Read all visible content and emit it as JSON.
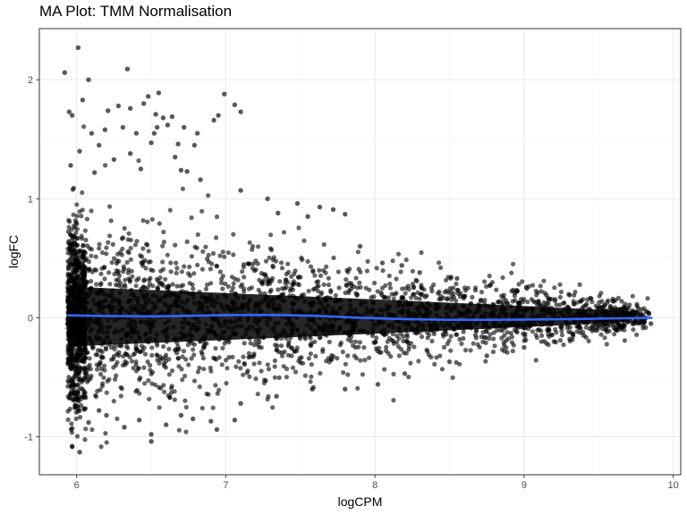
{
  "chart_data": {
    "type": "scatter",
    "title": "MA Plot: TMM Normalisation",
    "xlabel": "logCPM",
    "ylabel": "logFC",
    "xlim": [
      5.75,
      10.05
    ],
    "ylim": [
      -1.32,
      2.43
    ],
    "x_ticks": [
      "6",
      "7",
      "8",
      "9",
      "10"
    ],
    "x_tick_values": [
      6,
      7,
      8,
      9,
      10
    ],
    "y_ticks": [
      "-1",
      "0",
      "1",
      "2"
    ],
    "y_tick_values": [
      -1,
      0,
      1,
      2
    ],
    "grid": true,
    "theme": "bw",
    "point_color": "#000000",
    "point_alpha": 0.6,
    "line_color": "#3366FF",
    "point_density": "very dense cloud of several thousand genes; spread of logFC narrows as logCPM increases",
    "points": [
      [
        5.92,
        2.06
      ],
      [
        6.01,
        2.27
      ],
      [
        6.08,
        2.0
      ],
      [
        6.34,
        2.09
      ],
      [
        6.48,
        1.86
      ],
      [
        6.55,
        1.89
      ],
      [
        6.99,
        1.88
      ],
      [
        7.06,
        1.79
      ],
      [
        5.95,
        1.73
      ],
      [
        5.97,
        1.7
      ],
      [
        6.04,
        1.83
      ],
      [
        6.21,
        1.74
      ],
      [
        6.28,
        1.78
      ],
      [
        6.36,
        1.76
      ],
      [
        6.45,
        1.8
      ],
      [
        6.53,
        1.71
      ],
      [
        6.58,
        1.68
      ],
      [
        6.64,
        1.69
      ],
      [
        7.1,
        1.73
      ],
      [
        6.95,
        1.7
      ],
      [
        6.92,
        1.66
      ],
      [
        6.72,
        1.6
      ],
      [
        6.81,
        1.55
      ],
      [
        6.54,
        1.6
      ],
      [
        6.52,
        1.55
      ],
      [
        6.1,
        1.55
      ],
      [
        6.19,
        1.58
      ],
      [
        6.31,
        1.6
      ],
      [
        6.68,
        1.46
      ],
      [
        6.79,
        1.45
      ],
      [
        6.61,
        1.62
      ],
      [
        6.4,
        1.55
      ],
      [
        6.02,
        1.4
      ],
      [
        6.15,
        1.45
      ],
      [
        6.36,
        1.38
      ],
      [
        6.5,
        1.47
      ],
      [
        6.66,
        1.35
      ],
      [
        6.74,
        1.23
      ],
      [
        6.7,
        1.24
      ],
      [
        6.25,
        1.33
      ],
      [
        5.96,
        1.28
      ],
      [
        6.12,
        1.22
      ],
      [
        6.43,
        1.25
      ],
      [
        6.83,
        1.16
      ],
      [
        7.1,
        1.07
      ],
      [
        7.28,
        1.0
      ],
      [
        7.48,
        0.96
      ],
      [
        7.63,
        0.93
      ],
      [
        7.72,
        0.91
      ],
      [
        7.8,
        0.87
      ],
      [
        7.35,
        0.88
      ],
      [
        7.55,
        0.85
      ],
      [
        7.9,
        0.6
      ],
      [
        8.05,
        0.46
      ],
      [
        8.18,
        0.44
      ],
      [
        8.3,
        0.38
      ],
      [
        8.55,
        0.33
      ],
      [
        8.77,
        0.27
      ],
      [
        8.95,
        0.22
      ],
      [
        9.15,
        0.19
      ],
      [
        9.38,
        0.14
      ],
      [
        9.55,
        0.06
      ],
      [
        9.7,
        0.02
      ],
      [
        9.85,
        -0.05
      ],
      [
        9.62,
        -0.1
      ],
      [
        9.4,
        -0.15
      ],
      [
        9.2,
        -0.2
      ],
      [
        9.0,
        -0.25
      ],
      [
        8.75,
        -0.32
      ],
      [
        8.5,
        -0.37
      ],
      [
        8.2,
        -0.47
      ],
      [
        8.02,
        -0.56
      ],
      [
        7.8,
        -0.6
      ],
      [
        7.58,
        -0.6
      ],
      [
        7.34,
        -0.66
      ],
      [
        7.1,
        -0.72
      ],
      [
        7.06,
        -0.86
      ],
      [
        6.9,
        -0.87
      ],
      [
        6.7,
        -0.82
      ],
      [
        6.6,
        -0.9
      ],
      [
        6.5,
        -0.98
      ],
      [
        6.32,
        -0.92
      ],
      [
        6.2,
        -0.82
      ],
      [
        6.08,
        -0.88
      ],
      [
        5.97,
        -0.93
      ],
      [
        5.97,
        -1.08
      ],
      [
        6.02,
        -1.13
      ],
      [
        6.5,
        -1.04
      ],
      [
        6.94,
        -0.94
      ],
      [
        6.78,
        -0.85
      ],
      [
        6.42,
        -0.86
      ],
      [
        6.15,
        -0.78
      ],
      [
        5.99,
        -0.75
      ]
    ],
    "smooth_line": [
      [
        5.94,
        0.02
      ],
      [
        6.2,
        0.015
      ],
      [
        6.5,
        0.012
      ],
      [
        6.8,
        0.017
      ],
      [
        7.0,
        0.022
      ],
      [
        7.3,
        0.024
      ],
      [
        7.6,
        0.016
      ],
      [
        7.9,
        0.0
      ],
      [
        8.2,
        -0.012
      ],
      [
        8.5,
        -0.018
      ],
      [
        8.8,
        -0.018
      ],
      [
        9.1,
        -0.015
      ],
      [
        9.4,
        -0.01
      ],
      [
        9.65,
        -0.005
      ],
      [
        9.86,
        0.0
      ]
    ]
  }
}
